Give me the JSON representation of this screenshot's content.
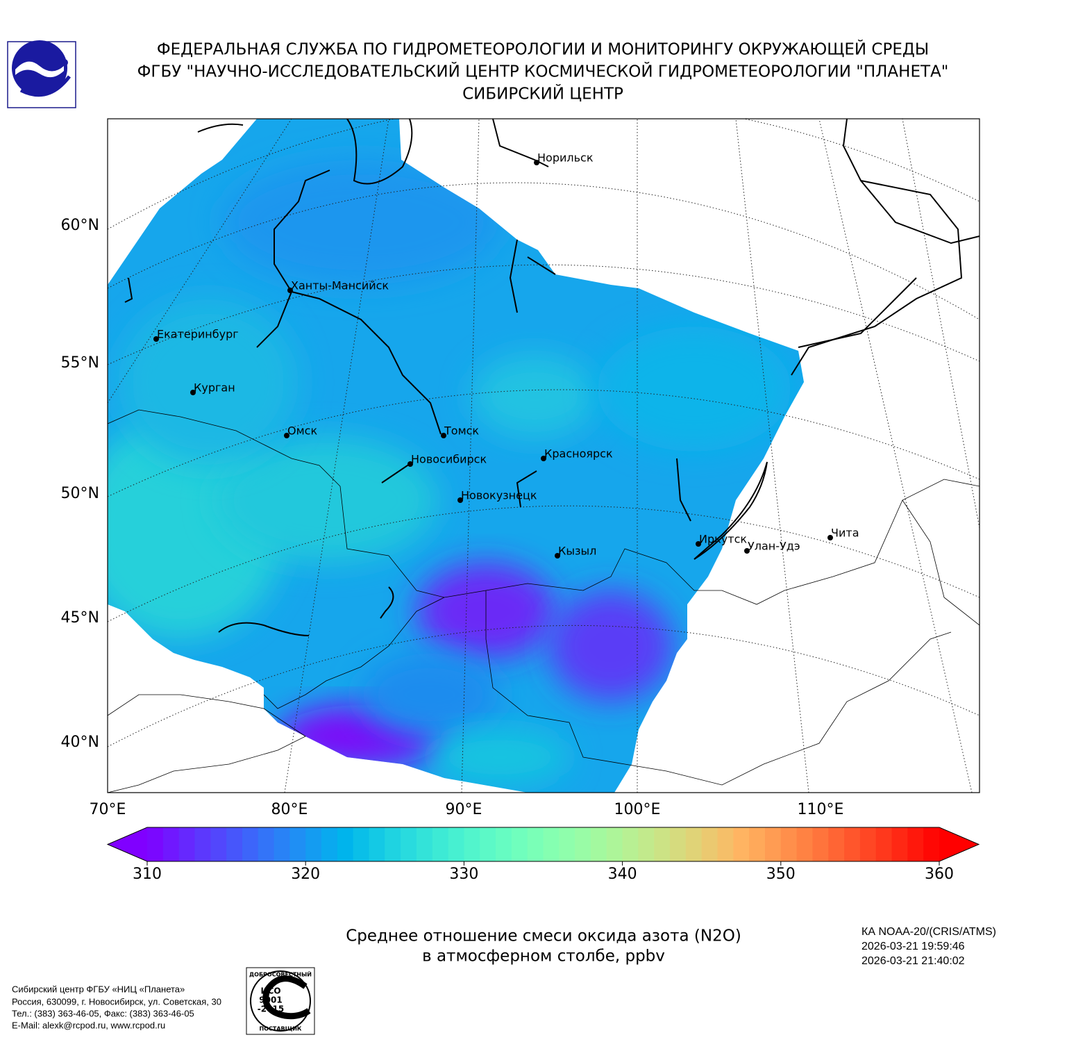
{
  "header": {
    "lines": [
      "ФЕДЕРАЛЬНАЯ СЛУЖБА ПО ГИДРОМЕТЕОРОЛОГИИ И МОНИТОРИНГУ ОКРУЖАЮЩЕЙ СРЕДЫ",
      "ФГБУ \"НАУЧНО-ИССЛЕДОВАТЕЛЬСКИЙ ЦЕНТР КОСМИЧЕСКОЙ ГИДРОМЕТЕОРОЛОГИИ \"ПЛАНЕТА\"",
      "СИБИРСКИЙ ЦЕНТР"
    ]
  },
  "map": {
    "lat_labels": [
      "60°N",
      "55°N",
      "50°N",
      "45°N",
      "40°N"
    ],
    "lon_labels": [
      "70°E",
      "80°E",
      "90°E",
      "100°E",
      "110°E"
    ],
    "cities": [
      "Норильск",
      "Ханты-Мансийск",
      "Екатеринбург",
      "Курган",
      "Омск",
      "Томск",
      "Новосибирск",
      "Красноярск",
      "Новокузнецк",
      "Кызыл",
      "Иркутск",
      "Улан-Удэ",
      "Чита"
    ]
  },
  "colorbar": {
    "cmap": "rainbow",
    "lim": [
      310,
      360
    ],
    "ticks": [
      310,
      320,
      330,
      340,
      350,
      360
    ],
    "levels": 50
  },
  "caption": {
    "lines": [
      "Среднее отношение смеси оксида азота (N2O)",
      "в атмосферном столбе, ppbv"
    ]
  },
  "satellite": {
    "lines": [
      "КА NOAA-20/(CRIS/ATMS)",
      "2026-03-21 19:59:46",
      "2026-03-21 21:40:02"
    ]
  },
  "footer": {
    "lines": [
      "Сибирский центр ФГБУ «НИЦ «Планета»",
      "Россия, 630099, г. Новосибирск, ул. Советская, 30",
      "Тел.: (383) 363-46-05, Факс: (383) 363-46-05",
      "E-Mail: alexk@rcpod.ru, www.rcpod.ru"
    ]
  },
  "badge": {
    "top": "ДОБРОСОВЕСТНЫЙ",
    "lines": [
      "ИСО",
      "9001",
      "-2015"
    ],
    "bottom": "ПОСТАВЩИК"
  }
}
